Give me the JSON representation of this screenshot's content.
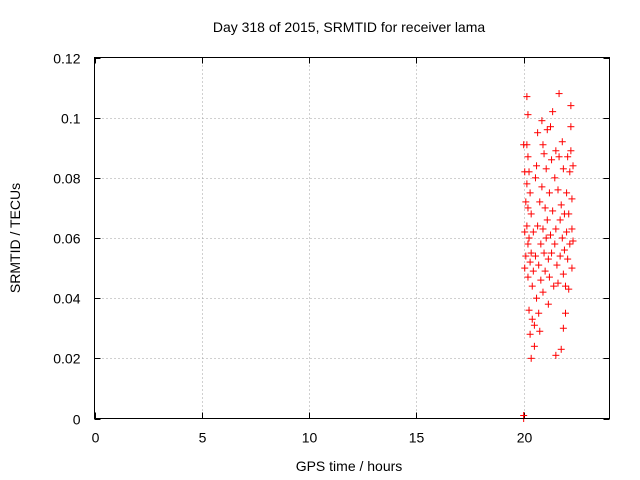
{
  "chart_data": {
    "type": "scatter",
    "title": "Day 318 of 2015, SRMTID for receiver lama",
    "xlabel": "GPS time / hours",
    "ylabel": "SRMTID / TECUs",
    "xlim": [
      0,
      24
    ],
    "ylim": [
      0,
      0.12
    ],
    "xticks": [
      0,
      5,
      10,
      15,
      20
    ],
    "yticks": [
      0,
      0.02,
      0.04,
      0.06,
      0.08,
      0.1,
      0.12
    ],
    "xtick_labels": [
      "0",
      "5",
      "10",
      "15",
      "20"
    ],
    "ytick_labels": [
      "0",
      "0.02",
      "0.04",
      "0.06",
      "0.08",
      "0.1",
      "0.12"
    ],
    "grid": true,
    "marker": "+",
    "color": "#ff0000",
    "series": [
      {
        "name": "SRMTID",
        "points": [
          [
            20.0,
            0.0
          ],
          [
            20.0,
            0.001
          ],
          [
            20.0,
            0.091
          ],
          [
            20.05,
            0.082
          ],
          [
            20.05,
            0.062
          ],
          [
            20.05,
            0.05
          ],
          [
            20.1,
            0.072
          ],
          [
            20.1,
            0.054
          ],
          [
            20.15,
            0.107
          ],
          [
            20.15,
            0.091
          ],
          [
            20.15,
            0.078
          ],
          [
            20.15,
            0.064
          ],
          [
            20.2,
            0.101
          ],
          [
            20.2,
            0.087
          ],
          [
            20.2,
            0.07
          ],
          [
            20.2,
            0.058
          ],
          [
            20.2,
            0.047
          ],
          [
            20.25,
            0.082
          ],
          [
            20.25,
            0.06
          ],
          [
            20.25,
            0.036
          ],
          [
            20.3,
            0.075
          ],
          [
            20.3,
            0.052
          ],
          [
            20.3,
            0.028
          ],
          [
            20.35,
            0.02
          ],
          [
            20.35,
            0.055
          ],
          [
            20.35,
            0.068
          ],
          [
            20.4,
            0.044
          ],
          [
            20.4,
            0.033
          ],
          [
            20.45,
            0.062
          ],
          [
            20.45,
            0.049
          ],
          [
            20.5,
            0.031
          ],
          [
            20.5,
            0.024
          ],
          [
            20.55,
            0.08
          ],
          [
            20.55,
            0.054
          ],
          [
            20.6,
            0.04
          ],
          [
            20.6,
            0.084
          ],
          [
            20.65,
            0.095
          ],
          [
            20.65,
            0.064
          ],
          [
            20.7,
            0.051
          ],
          [
            20.7,
            0.035
          ],
          [
            20.75,
            0.072
          ],
          [
            20.75,
            0.029
          ],
          [
            20.8,
            0.058
          ],
          [
            20.8,
            0.046
          ],
          [
            20.85,
            0.099
          ],
          [
            20.85,
            0.077
          ],
          [
            20.9,
            0.091
          ],
          [
            20.9,
            0.063
          ],
          [
            20.9,
            0.042
          ],
          [
            20.95,
            0.088
          ],
          [
            20.95,
            0.055
          ],
          [
            21.0,
            0.07
          ],
          [
            21.0,
            0.049
          ],
          [
            21.05,
            0.083
          ],
          [
            21.05,
            0.06
          ],
          [
            21.1,
            0.096
          ],
          [
            21.1,
            0.066
          ],
          [
            21.15,
            0.053
          ],
          [
            21.15,
            0.038
          ],
          [
            21.2,
            0.075
          ],
          [
            21.2,
            0.047
          ],
          [
            21.25,
            0.097
          ],
          [
            21.25,
            0.061
          ],
          [
            21.3,
            0.086
          ],
          [
            21.3,
            0.055
          ],
          [
            21.35,
            0.102
          ],
          [
            21.35,
            0.069
          ],
          [
            21.4,
            0.044
          ],
          [
            21.45,
            0.08
          ],
          [
            21.45,
            0.058
          ],
          [
            21.5,
            0.089
          ],
          [
            21.5,
            0.063
          ],
          [
            21.5,
            0.021
          ],
          [
            21.55,
            0.051
          ],
          [
            21.6,
            0.076
          ],
          [
            21.6,
            0.045
          ],
          [
            21.65,
            0.108
          ],
          [
            21.65,
            0.087
          ],
          [
            21.7,
            0.066
          ],
          [
            21.7,
            0.054
          ],
          [
            21.75,
            0.071
          ],
          [
            21.75,
            0.023
          ],
          [
            21.8,
            0.092
          ],
          [
            21.8,
            0.06
          ],
          [
            21.85,
            0.083
          ],
          [
            21.85,
            0.048
          ],
          [
            21.85,
            0.03
          ],
          [
            21.9,
            0.068
          ],
          [
            21.9,
            0.056
          ],
          [
            21.95,
            0.044
          ],
          [
            21.95,
            0.035
          ],
          [
            22.0,
            0.075
          ],
          [
            22.0,
            0.062
          ],
          [
            22.05,
            0.053
          ],
          [
            22.05,
            0.087
          ],
          [
            22.1,
            0.068
          ],
          [
            22.1,
            0.043
          ],
          [
            22.15,
            0.058
          ],
          [
            22.15,
            0.082
          ],
          [
            22.2,
            0.104
          ],
          [
            22.2,
            0.097
          ],
          [
            22.2,
            0.089
          ],
          [
            22.25,
            0.073
          ],
          [
            22.25,
            0.063
          ],
          [
            22.25,
            0.05
          ],
          [
            22.3,
            0.084
          ],
          [
            22.3,
            0.059
          ]
        ]
      }
    ]
  }
}
